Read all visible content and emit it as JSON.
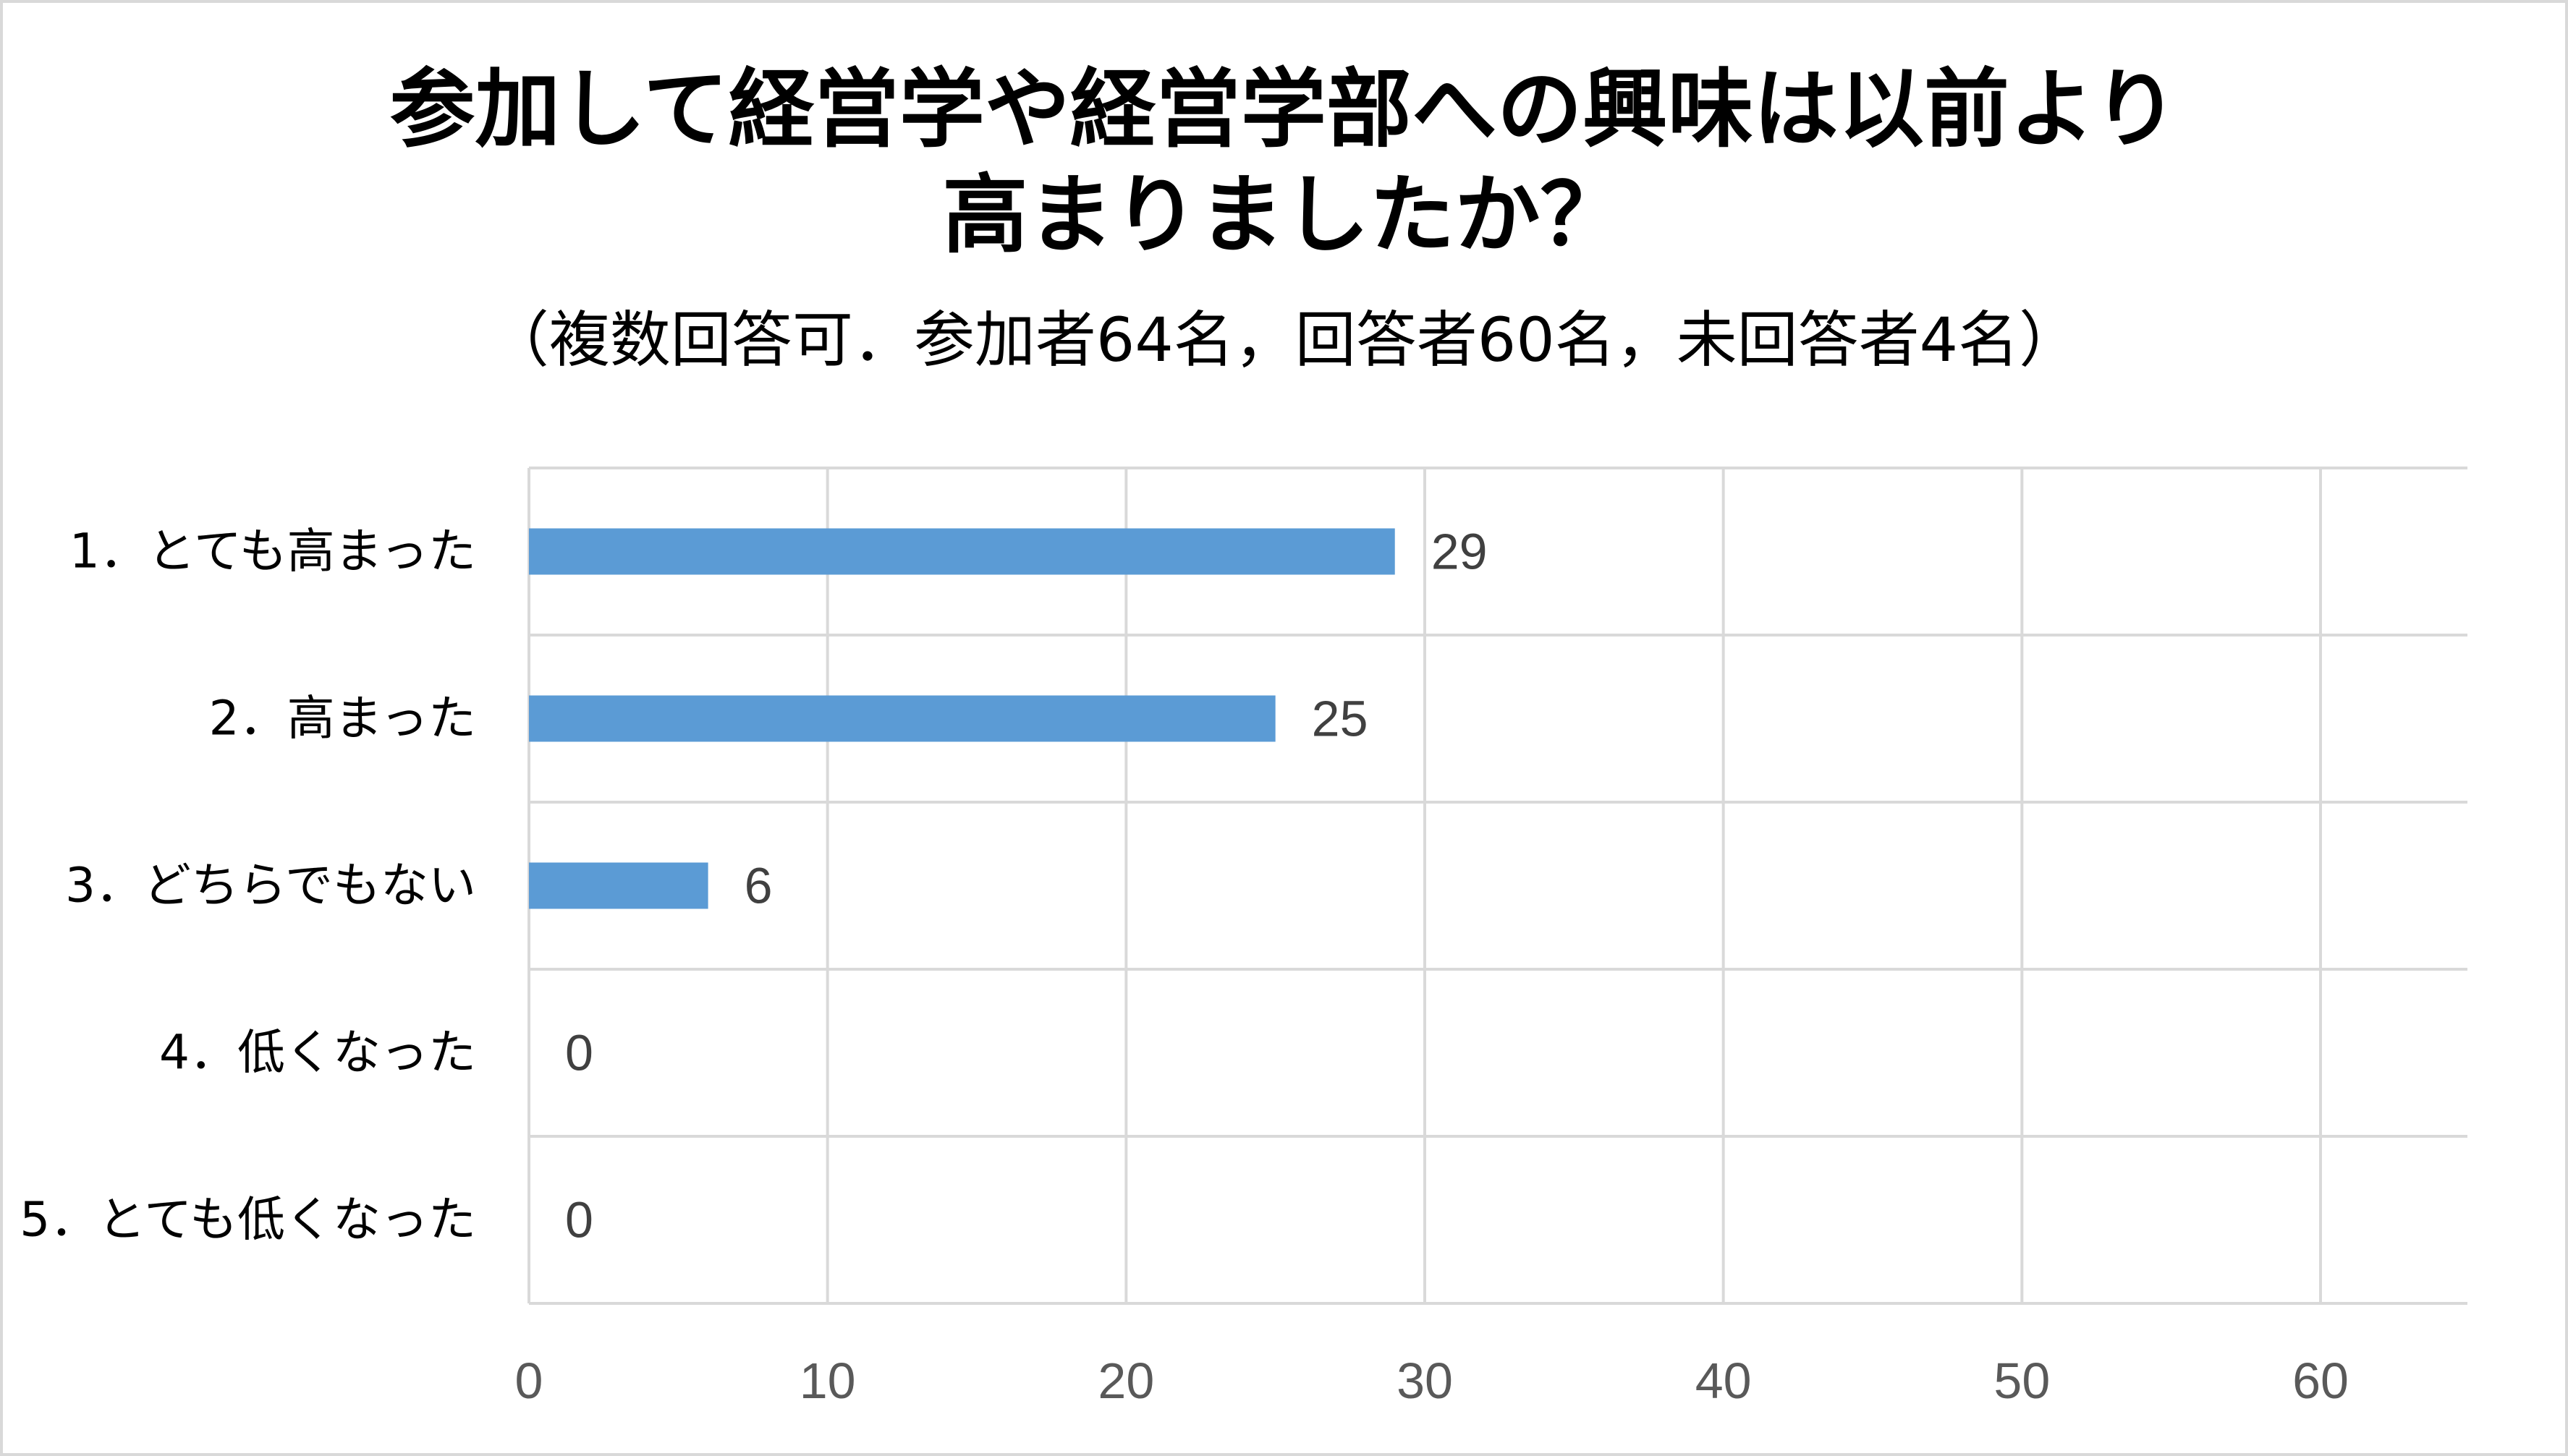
{
  "chart_data": {
    "type": "bar",
    "orientation": "horizontal",
    "title_lines": [
      "参加して経営学や経営学部への興味は以前より",
      "高まりましたか？"
    ],
    "subtitle": "（複数回答可．参加者64名，回答者60名，未回答者4名）",
    "categories": [
      "1．とても高まった",
      "2．高まった",
      "3．どちらでもない",
      "4．低くなった",
      "5．とても低くなった"
    ],
    "values": [
      29,
      25,
      6,
      0,
      0
    ],
    "data_labels": [
      "29",
      "25",
      "6",
      "0",
      "0"
    ],
    "xlim": [
      0,
      65
    ],
    "xticks": [
      0,
      10,
      20,
      30,
      40,
      50,
      60
    ],
    "grid": true,
    "legend": "none",
    "bar_color": "#5b9bd5",
    "grid_color": "#d9d9d9"
  }
}
